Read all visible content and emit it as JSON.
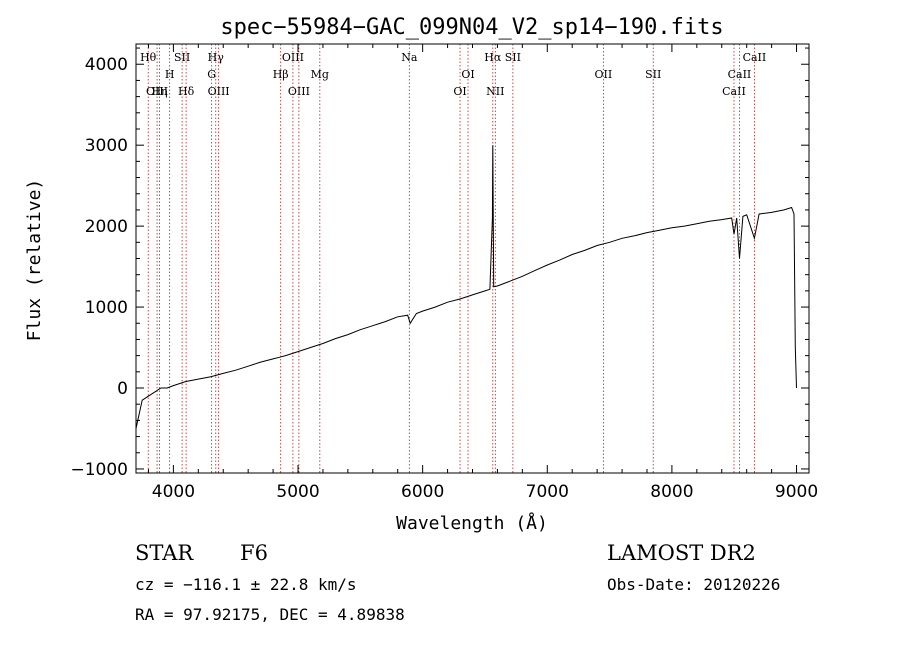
{
  "chart_data": {
    "type": "line",
    "title": "spec−55984−GAC_099N04_V2_sp14−190.fits",
    "xlabel": "Wavelength (Å)",
    "ylabel": "Flux (relative)",
    "xlim": [
      3700,
      9100
    ],
    "ylim": [
      -1050,
      4250
    ],
    "grid": false,
    "xticks": [
      4000,
      5000,
      6000,
      7000,
      8000,
      9000
    ],
    "yticks": [
      -1000,
      0,
      1000,
      2000,
      3000,
      4000
    ],
    "ytick_labels": [
      "−1000",
      "0",
      "1000",
      "2000",
      "3000",
      "4000"
    ],
    "series": [
      {
        "x": [
          3700,
          3750,
          3800,
          3850,
          3900,
          3950,
          4000,
          4100,
          4200,
          4300,
          4400,
          4500,
          4600,
          4700,
          4800,
          4850,
          4900,
          5000,
          5100,
          5200,
          5300,
          5400,
          5500,
          5600,
          5700,
          5800,
          5880,
          5900,
          5950,
          6000,
          6100,
          6200,
          6300,
          6400,
          6500,
          6540,
          6560,
          6563,
          6570,
          6600,
          6700,
          6800,
          6900,
          7000,
          7100,
          7200,
          7300,
          7400,
          7500,
          7600,
          7700,
          7800,
          7900,
          8000,
          8100,
          8200,
          8300,
          8400,
          8480,
          8498,
          8520,
          8542,
          8570,
          8600,
          8662,
          8700,
          8800,
          8900,
          8960,
          8980,
          8990,
          9000
        ],
        "y": [
          -500,
          -150,
          -100,
          -50,
          0,
          0,
          30,
          80,
          110,
          140,
          180,
          220,
          270,
          320,
          360,
          380,
          400,
          450,
          500,
          550,
          610,
          660,
          720,
          770,
          820,
          880,
          900,
          800,
          920,
          950,
          1000,
          1060,
          1100,
          1150,
          1200,
          1220,
          2100,
          3000,
          1250,
          1260,
          1320,
          1380,
          1450,
          1520,
          1580,
          1650,
          1700,
          1760,
          1800,
          1850,
          1880,
          1920,
          1950,
          1980,
          2000,
          2030,
          2060,
          2080,
          2100,
          1900,
          2100,
          1600,
          2120,
          2140,
          1850,
          2150,
          2170,
          2200,
          2230,
          2150,
          500,
          0
        ]
      }
    ],
    "lines": [
      {
        "label": "Hθ",
        "x": 3798,
        "row": 1
      },
      {
        "label": "OIII",
        "x": 3869,
        "row": 3
      },
      {
        "label": "Hη",
        "x": 3889,
        "row": 3
      },
      {
        "label": "H",
        "x": 3970,
        "row": 2
      },
      {
        "label": "SII",
        "x": 4070,
        "row": 1
      },
      {
        "label": "Hδ",
        "x": 4102,
        "row": 3
      },
      {
        "label": "Hγ",
        "x": 4340,
        "row": 1
      },
      {
        "label": "G",
        "x": 4307,
        "row": 2
      },
      {
        "label": "OIII",
        "x": 4363,
        "row": 3
      },
      {
        "label": "Hβ",
        "x": 4861,
        "row": 2
      },
      {
        "label": "OIII",
        "x": 4959,
        "row": 1
      },
      {
        "label": "OIII",
        "x": 5007,
        "row": 3
      },
      {
        "label": "Mg",
        "x": 5175,
        "row": 2
      },
      {
        "label": "Na",
        "x": 5893,
        "row": 1
      },
      {
        "label": "OI",
        "x": 6300,
        "row": 3
      },
      {
        "label": "OI",
        "x": 6364,
        "row": 2
      },
      {
        "label": "Hα",
        "x": 6563,
        "row": 1
      },
      {
        "label": "NII",
        "x": 6583,
        "row": 3
      },
      {
        "label": "SII",
        "x": 6724,
        "row": 1
      },
      {
        "label": "OII",
        "x": 7450,
        "row": 2
      },
      {
        "label": "SII",
        "x": 7850,
        "row": 2
      },
      {
        "label": "CaII",
        "x": 8498,
        "row": 3
      },
      {
        "label": "CaII",
        "x": 8542,
        "row": 2
      },
      {
        "label": "CaII",
        "x": 8662,
        "row": 1
      }
    ]
  },
  "info": {
    "class": "STAR",
    "subclass": "F6",
    "survey": "LAMOST DR2",
    "cz": "cz = −116.1 ± 22.8 km/s",
    "obs_date": "Obs-Date: 20120226",
    "radec": "RA =  97.92175, DEC =   4.89838"
  },
  "colors": {
    "spectrum": "#000000",
    "lines": "#b22222"
  }
}
